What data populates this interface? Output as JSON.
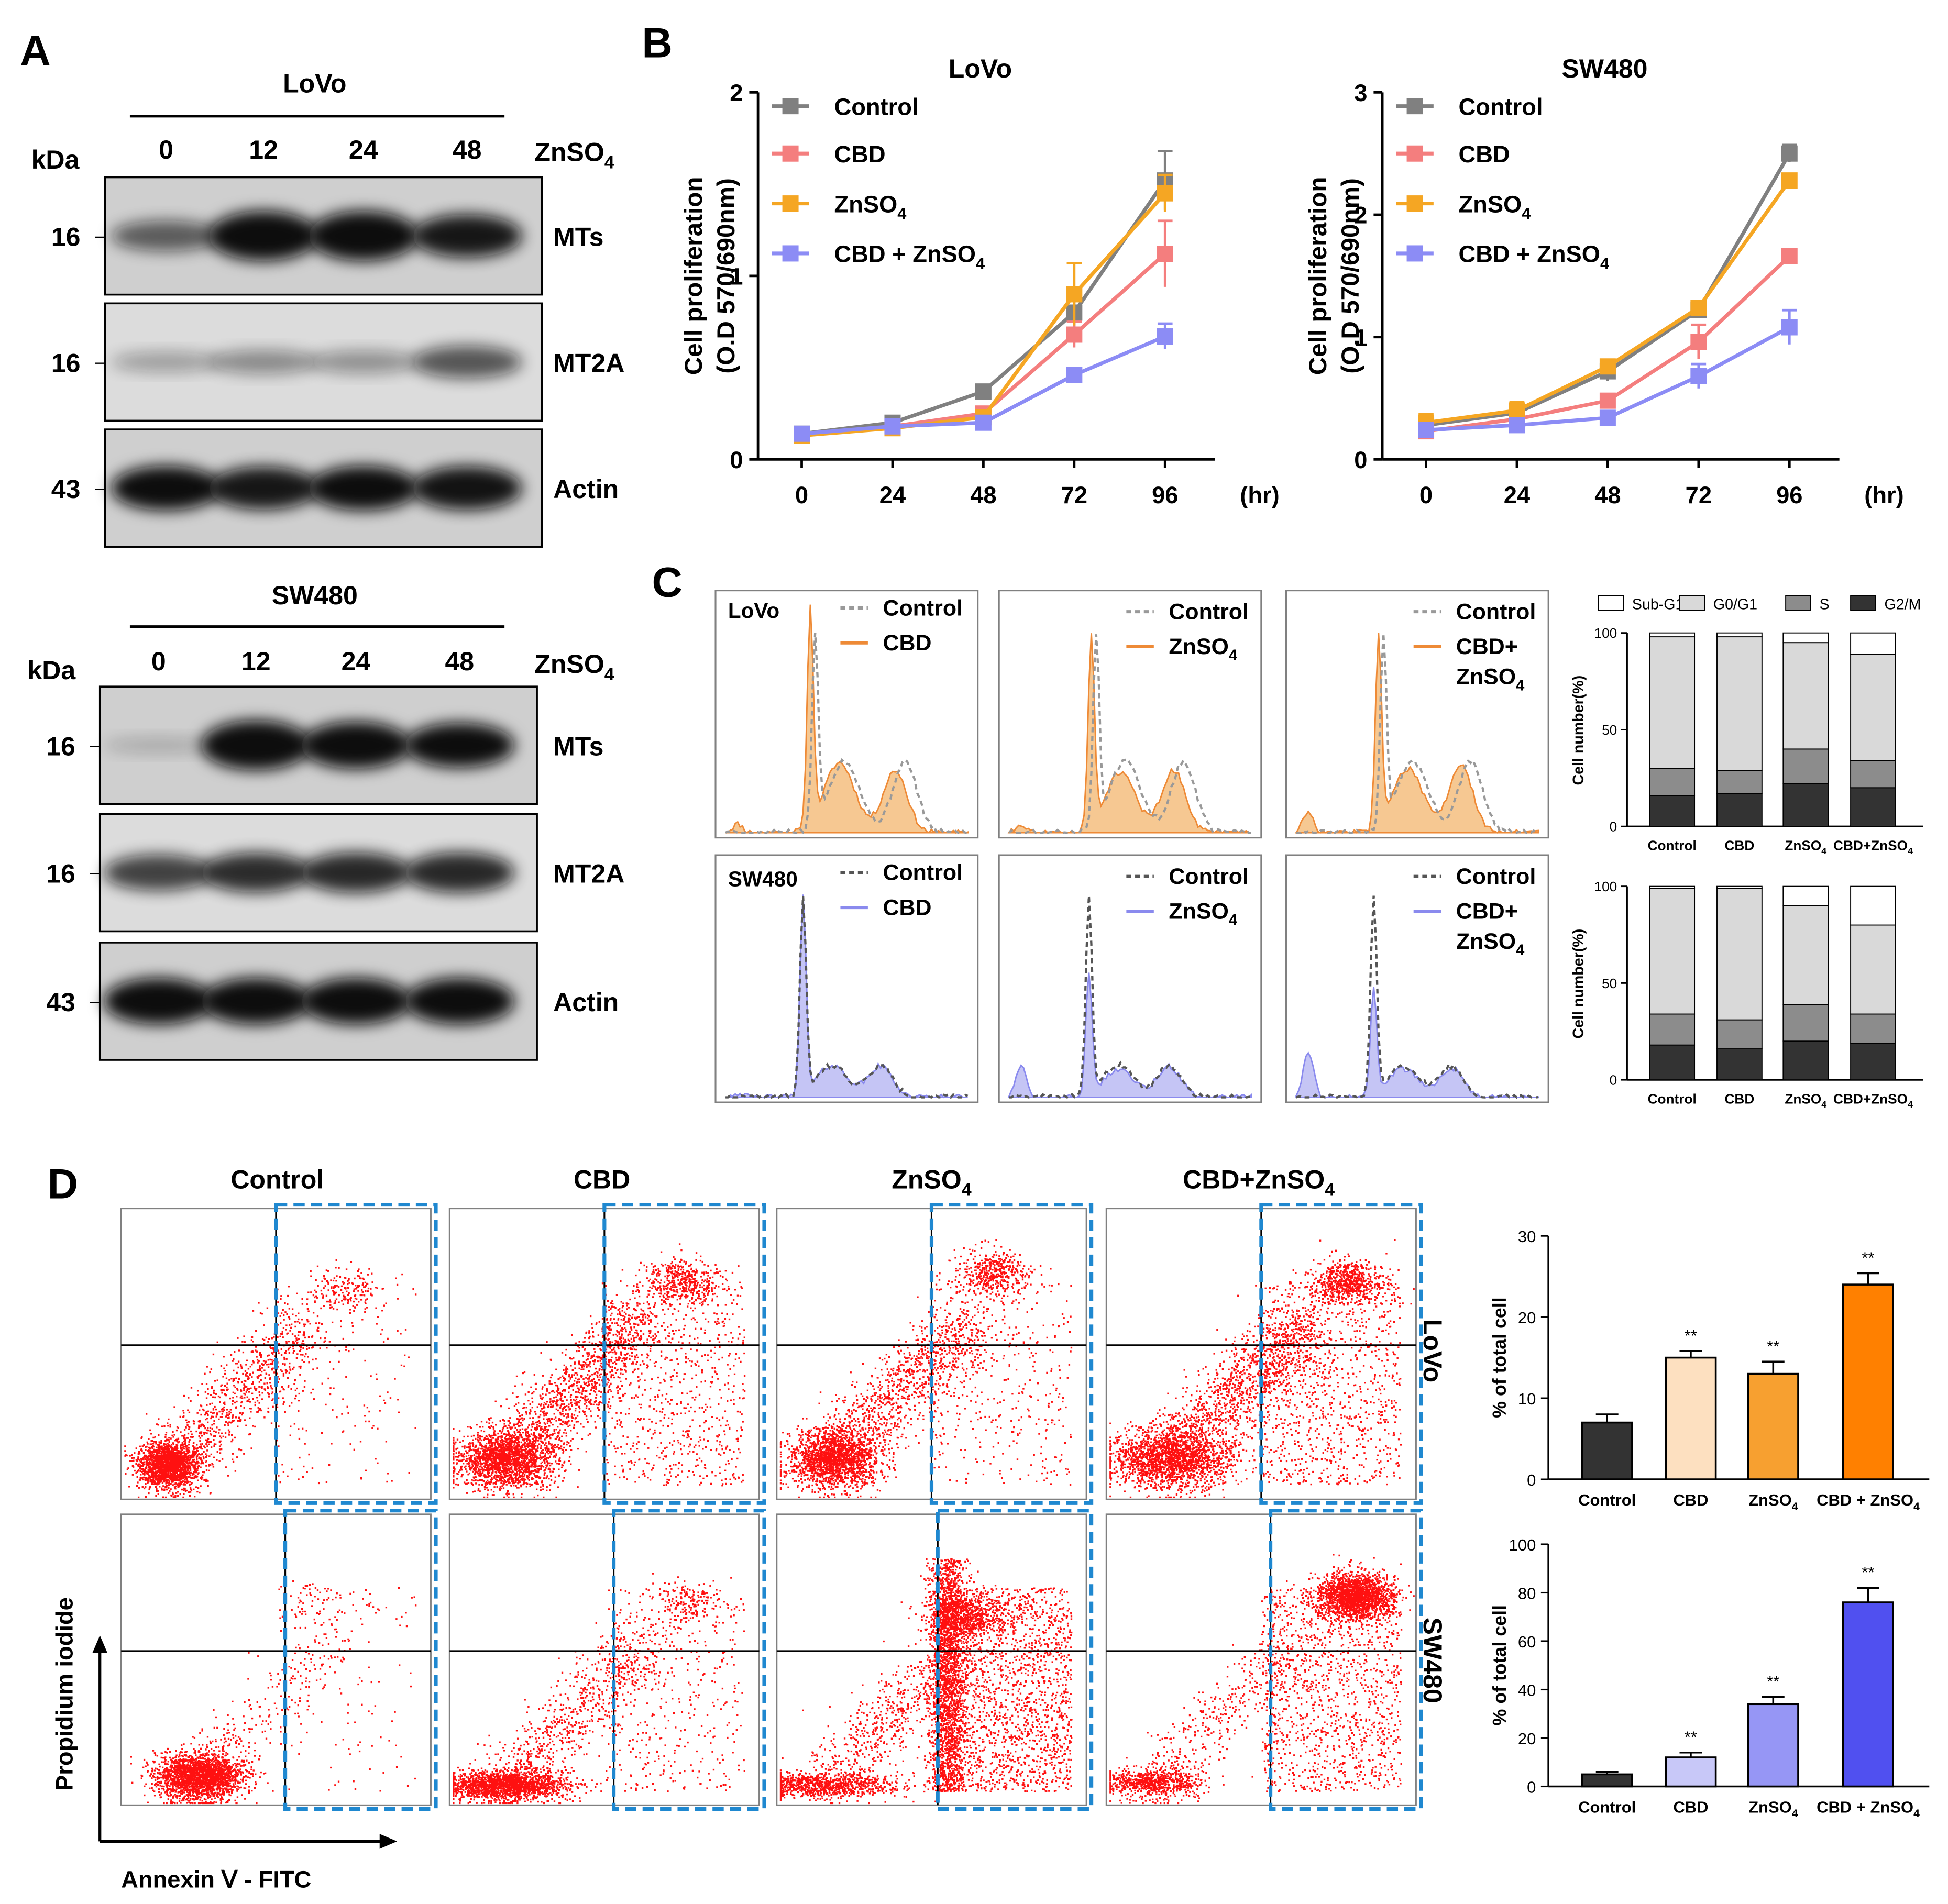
{
  "panels": {
    "A": "A",
    "B": "B",
    "C": "C",
    "D": "D"
  },
  "blotA": {
    "kda": "kDa",
    "treatment": "ZnSO",
    "treatment_sub": "4",
    "lanes": [
      "0",
      "12",
      "24",
      "48"
    ],
    "blocks": [
      {
        "cell": "LoVo",
        "rows": [
          {
            "label": "MTs",
            "kda": "16",
            "intensity": [
              0.45,
              1.0,
              1.0,
              0.8
            ]
          },
          {
            "label": "MT2A",
            "kda": "16",
            "intensity": [
              0.15,
              0.25,
              0.22,
              0.5
            ]
          },
          {
            "label": "Actin",
            "kda": "43",
            "intensity": [
              0.85,
              0.8,
              0.85,
              0.82
            ]
          }
        ]
      },
      {
        "cell": "SW480",
        "rows": [
          {
            "label": "MTs",
            "kda": "16",
            "intensity": [
              0.04,
              1.0,
              0.92,
              0.85
            ]
          },
          {
            "label": "MT2A",
            "kda": "16",
            "intensity": [
              0.6,
              0.7,
              0.72,
              0.72
            ]
          },
          {
            "label": "Actin",
            "kda": "43",
            "intensity": [
              0.9,
              0.9,
              0.9,
              0.9
            ]
          }
        ]
      }
    ]
  },
  "legendB": [
    {
      "name": "Control",
      "sub": "",
      "color": "#808080"
    },
    {
      "name": "CBD",
      "sub": "",
      "color": "#f47e7e"
    },
    {
      "name": "ZnSO",
      "sub": "4",
      "color": "#f5a623"
    },
    {
      "name": "CBD + ZnSO",
      "sub": "4",
      "color": "#8c8cf5"
    }
  ],
  "flowC": {
    "control": "Control",
    "rows": [
      {
        "cell": "LoVo",
        "fill": "#f6c892",
        "stroke": "#ee8a36",
        "dash": "#999999"
      },
      {
        "cell": "SW480",
        "fill": "#c5c5f5",
        "stroke": "#8a8aee",
        "dash": "#555555"
      }
    ],
    "panels": [
      {
        "l1": "CBD",
        "l2": "",
        "sub": ""
      },
      {
        "l1": "ZnSO",
        "l2": "",
        "sub": "4"
      },
      {
        "l1": "CBD+",
        "l2": "ZnSO",
        "sub": "4"
      }
    ],
    "legend": [
      "Sub-G1",
      "G0/G1",
      "S",
      "G2/M"
    ],
    "legend_colors": [
      "#ffffff",
      "#d9d9d9",
      "#8c8c8c",
      "#333333"
    ],
    "xcats": [
      {
        "name": "Control",
        "sub": ""
      },
      {
        "name": "CBD",
        "sub": ""
      },
      {
        "name": "ZnSO",
        "sub": "4"
      },
      {
        "name": "CBD+ZnSO",
        "sub": "4"
      }
    ]
  },
  "scatterD": {
    "headers": [
      {
        "name": "Control",
        "sub": ""
      },
      {
        "name": "CBD",
        "sub": ""
      },
      {
        "name": "ZnSO",
        "sub": "4"
      },
      {
        "name": "CBD+ZnSO",
        "sub": "4"
      }
    ],
    "rows": [
      "LoVo",
      "SW480"
    ],
    "ylabel": "Propidium iodide",
    "xlabel": "Annexin Ⅴ - FITC"
  },
  "chart_data": [
    {
      "id": "B-LoVo",
      "type": "line",
      "title": "LoVo",
      "xlabel": "(hr)",
      "ylabel": "Cell proliferation",
      "ylabel2": "(O.D 570/690nm)",
      "x": [
        0,
        24,
        48,
        72,
        96
      ],
      "ylim": [
        0,
        2
      ],
      "yticks": [
        0,
        1,
        2
      ],
      "series": [
        {
          "name": "Control",
          "color": "#808080",
          "values": [
            0.14,
            0.2,
            0.37,
            0.8,
            1.52
          ],
          "err": [
            0.02,
            0.03,
            0.03,
            0.1,
            0.16
          ]
        },
        {
          "name": "CBD",
          "color": "#f47e7e",
          "values": [
            0.13,
            0.18,
            0.25,
            0.68,
            1.12
          ],
          "err": [
            0.02,
            0.02,
            0.03,
            0.07,
            0.18
          ]
        },
        {
          "name": "ZnSO4",
          "color": "#f5a623",
          "values": [
            0.13,
            0.17,
            0.23,
            0.9,
            1.45
          ],
          "err": [
            0.02,
            0.02,
            0.03,
            0.17,
            0.1
          ]
        },
        {
          "name": "CBD + ZnSO4",
          "color": "#8c8cf5",
          "values": [
            0.14,
            0.18,
            0.2,
            0.46,
            0.67
          ],
          "err": [
            0.02,
            0.02,
            0.02,
            0.03,
            0.07
          ]
        }
      ]
    },
    {
      "id": "B-SW480",
      "type": "line",
      "title": "SW480",
      "xlabel": "(hr)",
      "ylabel": "Cell proliferation",
      "ylabel2": "(O.D 570/690nm)",
      "x": [
        0,
        24,
        48,
        72,
        96
      ],
      "ylim": [
        0,
        3
      ],
      "yticks": [
        0,
        1,
        2,
        3
      ],
      "series": [
        {
          "name": "Control",
          "color": "#808080",
          "values": [
            0.28,
            0.38,
            0.72,
            1.22,
            2.5
          ],
          "err": [
            0.05,
            0.06,
            0.08,
            0.05,
            0.07
          ]
        },
        {
          "name": "CBD",
          "color": "#f47e7e",
          "values": [
            0.23,
            0.33,
            0.48,
            0.96,
            1.66
          ],
          "err": [
            0.04,
            0.04,
            0.05,
            0.14,
            0.05
          ]
        },
        {
          "name": "ZnSO4",
          "color": "#f5a623",
          "values": [
            0.3,
            0.4,
            0.76,
            1.24,
            2.28
          ],
          "err": [
            0.07,
            0.07,
            0.05,
            0.05,
            0.05
          ]
        },
        {
          "name": "CBD + ZnSO4",
          "color": "#8c8cf5",
          "values": [
            0.24,
            0.28,
            0.34,
            0.68,
            1.08
          ],
          "err": [
            0.03,
            0.03,
            0.03,
            0.1,
            0.14
          ]
        }
      ]
    },
    {
      "id": "C-LoVo",
      "type": "bar",
      "stacked": true,
      "ylabel": "Cell number(%)",
      "categories": [
        "Control",
        "CBD",
        "ZnSO4",
        "CBD+ZnSO4"
      ],
      "ylim": [
        0,
        100
      ],
      "yticks": [
        0,
        50,
        100
      ],
      "series": [
        {
          "name": "G2/M",
          "color": "#333333",
          "values": [
            16,
            17,
            22,
            20
          ]
        },
        {
          "name": "S",
          "color": "#8c8c8c",
          "values": [
            14,
            12,
            18,
            14
          ]
        },
        {
          "name": "G0/G1",
          "color": "#d9d9d9",
          "values": [
            68,
            69,
            55,
            55
          ]
        },
        {
          "name": "Sub-G1",
          "color": "#ffffff",
          "values": [
            2,
            2,
            5,
            11
          ]
        }
      ]
    },
    {
      "id": "C-SW480",
      "type": "bar",
      "stacked": true,
      "ylabel": "Cell number(%)",
      "categories": [
        "Control",
        "CBD",
        "ZnSO4",
        "CBD+ZnSO4"
      ],
      "ylim": [
        0,
        100
      ],
      "yticks": [
        0,
        50,
        100
      ],
      "series": [
        {
          "name": "G2/M",
          "color": "#333333",
          "values": [
            18,
            16,
            20,
            19
          ]
        },
        {
          "name": "S",
          "color": "#8c8c8c",
          "values": [
            16,
            15,
            19,
            15
          ]
        },
        {
          "name": "G0/G1",
          "color": "#d9d9d9",
          "values": [
            65,
            68,
            51,
            46
          ]
        },
        {
          "name": "Sub-G1",
          "color": "#ffffff",
          "values": [
            1,
            1,
            10,
            20
          ]
        }
      ]
    },
    {
      "id": "D-LoVo",
      "type": "bar",
      "ylabel": "% of total cell",
      "categories": [
        "Control",
        "CBD",
        "ZnSO4",
        "CBD + ZnSO4"
      ],
      "ylim": [
        0,
        30
      ],
      "yticks": [
        0,
        10,
        20,
        30
      ],
      "values": [
        7,
        15,
        13,
        24
      ],
      "err": [
        1.0,
        0.8,
        1.5,
        1.4
      ],
      "colors": [
        "#333333",
        "#fde0c0",
        "#f7a030",
        "#ff8000"
      ],
      "annotations": [
        "",
        "**",
        "**",
        "**"
      ]
    },
    {
      "id": "D-SW480",
      "type": "bar",
      "ylabel": "% of total cell",
      "categories": [
        "Control",
        "CBD",
        "ZnSO4",
        "CBD + ZnSO4"
      ],
      "ylim": [
        0,
        100
      ],
      "yticks": [
        0,
        20,
        40,
        60,
        80,
        100
      ],
      "values": [
        5,
        12,
        34,
        76
      ],
      "err": [
        1.0,
        2.0,
        3.0,
        6.0
      ],
      "colors": [
        "#333333",
        "#c8c8f8",
        "#9696f5",
        "#5050f0"
      ],
      "annotations": [
        "",
        "**",
        "**",
        "**"
      ]
    }
  ]
}
